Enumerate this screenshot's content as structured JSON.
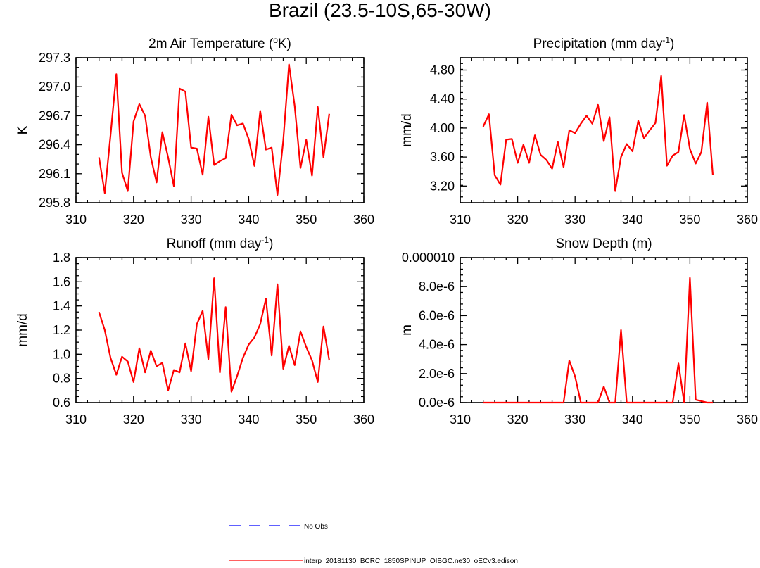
{
  "page": {
    "title": "Brazil (23.5-10S,65-30W)"
  },
  "legend": {
    "entries": [
      {
        "label": "No Obs",
        "color": "#0000ff",
        "style": "dashed"
      },
      {
        "label": "interp_20181130_BCRC_1850SPINUP_OIBGC.ne30_oECv3.edison",
        "color": "#ff0000",
        "style": "solid"
      }
    ]
  },
  "chart_data": [
    {
      "type": "line",
      "title": "2m Air Temperature (",
      "title_sup": "o",
      "title_suffix": "K)",
      "xlabel": "",
      "ylabel": "K",
      "xlim": [
        310,
        360
      ],
      "ylim": [
        295.8,
        297.3
      ],
      "xticks": [
        310,
        320,
        330,
        340,
        350,
        360
      ],
      "yticks": [
        295.8,
        296.1,
        296.4,
        296.7,
        297.0,
        297.3
      ],
      "ytick_labels": [
        "295.8",
        "296.1",
        "296.4",
        "296.7",
        "297.0",
        "297.3"
      ],
      "yminor_step": 0.1,
      "x": [
        314,
        315,
        316,
        317,
        318,
        319,
        320,
        321,
        322,
        323,
        324,
        325,
        326,
        327,
        328,
        329,
        330,
        331,
        332,
        333,
        334,
        335,
        336,
        337,
        338,
        339,
        340,
        341,
        342,
        343,
        344,
        345,
        346,
        347,
        348,
        349,
        350,
        351,
        352,
        353,
        354
      ],
      "series": [
        {
          "name": "interp_20181130_BCRC_1850SPINUP_OIBGC.ne30_oECv3.edison",
          "color": "#ff0000",
          "values": [
            296.27,
            295.9,
            296.5,
            297.13,
            296.11,
            295.92,
            296.64,
            296.82,
            296.7,
            296.27,
            296.01,
            296.53,
            296.27,
            295.97,
            296.98,
            296.95,
            296.37,
            296.36,
            296.09,
            296.69,
            296.19,
            296.23,
            296.26,
            296.71,
            296.6,
            296.62,
            296.46,
            296.18,
            296.75,
            296.35,
            296.37,
            295.88,
            296.44,
            297.23,
            296.8,
            296.16,
            296.45,
            296.08,
            296.79,
            296.27,
            296.72
          ]
        }
      ]
    },
    {
      "type": "line",
      "title": "Precipitation (mm day",
      "title_sup": "-1",
      "title_suffix": ")",
      "xlabel": "",
      "ylabel": "mm/d",
      "xlim": [
        310,
        360
      ],
      "ylim": [
        2.97,
        4.97
      ],
      "xticks": [
        310,
        320,
        330,
        340,
        350,
        360
      ],
      "yticks": [
        3.2,
        3.6,
        4.0,
        4.4,
        4.8
      ],
      "ytick_labels": [
        "3.20",
        "3.60",
        "4.00",
        "4.40",
        "4.80"
      ],
      "yminor_step": 0.08,
      "x": [
        314,
        315,
        316,
        317,
        318,
        319,
        320,
        321,
        322,
        323,
        324,
        325,
        326,
        327,
        328,
        329,
        330,
        331,
        332,
        333,
        334,
        335,
        336,
        337,
        338,
        339,
        340,
        341,
        342,
        343,
        344,
        345,
        346,
        347,
        348,
        349,
        350,
        351,
        352,
        353,
        354
      ],
      "series": [
        {
          "name": "interp_20181130_BCRC_1850SPINUP_OIBGC.ne30_oECv3.edison",
          "color": "#ff0000",
          "values": [
            4.02,
            4.19,
            3.35,
            3.22,
            3.84,
            3.85,
            3.52,
            3.77,
            3.52,
            3.9,
            3.63,
            3.56,
            3.44,
            3.81,
            3.46,
            3.97,
            3.93,
            4.06,
            4.17,
            4.06,
            4.32,
            3.82,
            4.15,
            3.13,
            3.6,
            3.78,
            3.68,
            4.1,
            3.86,
            3.97,
            4.07,
            4.72,
            3.48,
            3.62,
            3.67,
            4.18,
            3.71,
            3.51,
            3.67,
            4.35,
            3.35
          ]
        }
      ]
    },
    {
      "type": "line",
      "title": "Runoff (mm day",
      "title_sup": "-1",
      "title_suffix": ")",
      "xlabel": "",
      "ylabel": "mm/d",
      "xlim": [
        310,
        360
      ],
      "ylim": [
        0.6,
        1.8
      ],
      "xticks": [
        310,
        320,
        330,
        340,
        350,
        360
      ],
      "yticks": [
        0.6,
        0.8,
        1.0,
        1.2,
        1.4,
        1.6,
        1.8
      ],
      "ytick_labels": [
        "0.6",
        "0.8",
        "1.0",
        "1.2",
        "1.4",
        "1.6",
        "1.8"
      ],
      "yminor_step": 0.05,
      "x": [
        314,
        315,
        316,
        317,
        318,
        319,
        320,
        321,
        322,
        323,
        324,
        325,
        326,
        327,
        328,
        329,
        330,
        331,
        332,
        333,
        334,
        335,
        336,
        337,
        338,
        339,
        340,
        341,
        342,
        343,
        344,
        345,
        346,
        347,
        348,
        349,
        350,
        351,
        352,
        353,
        354
      ],
      "series": [
        {
          "name": "interp_20181130_BCRC_1850SPINUP_OIBGC.ne30_oECv3.edison",
          "color": "#ff0000",
          "values": [
            1.35,
            1.2,
            0.97,
            0.83,
            0.98,
            0.94,
            0.77,
            1.05,
            0.85,
            1.03,
            0.9,
            0.93,
            0.7,
            0.87,
            0.85,
            1.09,
            0.86,
            1.25,
            1.36,
            0.96,
            1.63,
            0.85,
            1.39,
            0.69,
            0.82,
            0.97,
            1.08,
            1.14,
            1.25,
            1.46,
            0.99,
            1.58,
            0.88,
            1.07,
            0.91,
            1.19,
            1.06,
            0.95,
            0.77,
            1.23,
            0.95
          ]
        }
      ]
    },
    {
      "type": "line",
      "title": "Snow Depth (m)",
      "title_sup": "",
      "title_suffix": "",
      "xlabel": "",
      "ylabel": "m",
      "xlim": [
        310,
        360
      ],
      "ylim": [
        0,
        1e-05
      ],
      "xticks": [
        310,
        320,
        330,
        340,
        350,
        360
      ],
      "yticks": [
        0,
        2e-06,
        4e-06,
        6e-06,
        8e-06,
        1e-05
      ],
      "ytick_labels": [
        "0.0e-6",
        "2.0e-6",
        "4.0e-6",
        "6.0e-6",
        "8.0e-6",
        "0.000010"
      ],
      "yminor_step": 4e-07,
      "x": [
        314,
        315,
        316,
        317,
        318,
        319,
        320,
        321,
        322,
        323,
        324,
        325,
        326,
        327,
        328,
        329,
        330,
        331,
        332,
        333,
        334,
        335,
        336,
        337,
        338,
        339,
        340,
        341,
        342,
        343,
        344,
        345,
        346,
        347,
        348,
        349,
        350,
        351,
        352,
        353,
        354
      ],
      "series": [
        {
          "name": "interp_20181130_BCRC_1850SPINUP_OIBGC.ne30_oECv3.edison",
          "color": "#ff0000",
          "values": [
            0,
            0,
            0,
            0,
            0,
            0,
            0,
            0,
            0,
            0,
            0,
            0,
            0,
            0,
            0,
            2.9e-06,
            1.8e-06,
            0,
            0,
            0,
            0,
            1.1e-06,
            0,
            0,
            5e-06,
            0,
            0,
            0,
            0,
            0,
            0,
            0,
            0,
            0,
            2.7e-06,
            0,
            8.6e-06,
            2e-07,
            1e-07,
            0,
            0
          ]
        }
      ]
    }
  ]
}
